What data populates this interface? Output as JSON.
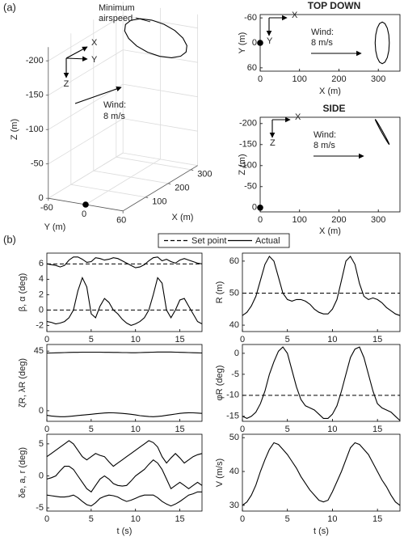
{
  "panels": [
    "(a)",
    "(b)"
  ],
  "legend": {
    "items": [
      {
        "name": "Set point",
        "dash": "5,3"
      },
      {
        "name": "Actual",
        "dash": "none"
      }
    ]
  },
  "chart_data": [
    {
      "type": "line3d",
      "annotation": [
        "Minimum",
        "airspeed"
      ],
      "wind": [
        "Wind:",
        "8 m/s"
      ],
      "triad": [
        "X",
        "Y",
        "Z"
      ],
      "xlabel": "X (m)",
      "ylabel": "Y (m)",
      "zlabel": "Z (m)",
      "x": [
        328,
        326.6,
        322.7,
        316.9,
        310,
        303.1,
        297.3,
        293.4,
        292,
        293.4,
        297.3,
        303.1,
        310,
        316.9,
        322.7,
        326.6,
        328
      ],
      "y": [
        0,
        19.1,
        35.4,
        46.2,
        50,
        46.2,
        35.4,
        19.1,
        0,
        -19.1,
        -35.4,
        -46.2,
        -50,
        -46.2,
        -35.4,
        -19.1,
        0
      ],
      "z": [
        -150,
        -151.2,
        -156.7,
        -165.7,
        -177,
        -188.7,
        -199.1,
        -206.6,
        -210,
        -208.8,
        -203.3,
        -194.3,
        -183,
        -171.3,
        -160.9,
        -153.4,
        -150
      ],
      "start": [
        0,
        0,
        0
      ],
      "color": "#000000",
      "xlim": [
        0,
        330
      ],
      "ylim": [
        -60,
        60
      ],
      "zlim": [
        -220,
        0
      ],
      "xticks": [
        100,
        200,
        300
      ],
      "yticks": [
        -60,
        0,
        60
      ],
      "zticks": [
        -200,
        -150,
        -100,
        -50,
        0
      ],
      "grid": true
    },
    {
      "type": "line",
      "title": "TOP DOWN",
      "xlabel": "X (m)",
      "ylabel": "Y (m)",
      "triad": [
        "X",
        "Y"
      ],
      "wind": [
        "Wind:",
        "8 m/s"
      ],
      "x": [
        328,
        326.6,
        322.7,
        316.9,
        310,
        303.1,
        297.3,
        293.4,
        292,
        293.4,
        297.3,
        303.1,
        310,
        316.9,
        322.7,
        326.6,
        328
      ],
      "series": [
        {
          "color": "#000000",
          "values": [
            0,
            19.1,
            35.4,
            46.2,
            50,
            46.2,
            35.4,
            19.1,
            0,
            -19.1,
            -35.4,
            -46.2,
            -50,
            -46.2,
            -35.4,
            -19.1,
            0
          ]
        }
      ],
      "start": [
        0,
        0
      ],
      "xlim": [
        0,
        355
      ],
      "xticks": [
        0,
        100,
        200,
        300
      ],
      "ylim": [
        -68,
        68
      ],
      "yticks": [
        -60,
        0,
        60
      ],
      "y_reversed": true
    },
    {
      "type": "line",
      "title": "SIDE",
      "xlabel": "X (m)",
      "ylabel": "Z (m)",
      "triad": [
        "X",
        "Z"
      ],
      "wind": [
        "Wind:",
        "8 m/s"
      ],
      "x": [
        328,
        326.6,
        322.7,
        316.9,
        310,
        303.1,
        297.3,
        293.4,
        292,
        293.4,
        297.3,
        303.1,
        310,
        316.9,
        322.7,
        326.6,
        328
      ],
      "series": [
        {
          "color": "#000000",
          "values": [
            -150,
            -151.2,
            -156.7,
            -165.7,
            -177,
            -188.7,
            -199.1,
            -206.6,
            -210,
            -208.8,
            -203.3,
            -194.3,
            -183,
            -171.3,
            -160.9,
            -153.4,
            -150
          ]
        }
      ],
      "start": [
        0,
        0
      ],
      "xlim": [
        0,
        355
      ],
      "xticks": [
        0,
        100,
        200,
        300
      ],
      "ylim": [
        -215,
        10
      ],
      "yticks": [
        -200,
        -150,
        -100,
        -50,
        0
      ],
      "y_reversed": true
    },
    {
      "type": "line",
      "ylabel": "β, α (deg)",
      "x": [
        0,
        0.5,
        1,
        1.5,
        2,
        2.5,
        3,
        3.5,
        4,
        4.5,
        5,
        5.5,
        6,
        6.5,
        7,
        7.5,
        8,
        8.5,
        9,
        9.5,
        10,
        10.5,
        11,
        11.5,
        12,
        12.5,
        13,
        13.5,
        14,
        14.5,
        15,
        15.5,
        16,
        16.5,
        17,
        17.5
      ],
      "setpoints": [
        6,
        0
      ],
      "series": [
        {
          "color": "#000000",
          "values": [
            6,
            5.9,
            5.8,
            5.6,
            5.8,
            6.5,
            6.9,
            6.9,
            6.6,
            6.2,
            6.3,
            6.8,
            6.7,
            6.5,
            6.6,
            6.8,
            6.7,
            6.4,
            6.1,
            5.8,
            5.5,
            5.6,
            5.9,
            6.4,
            6.8,
            6.9,
            6.4,
            6.6,
            6.3,
            6.1,
            6.5,
            6.7,
            6.5,
            6.3,
            6.1,
            6
          ]
        },
        {
          "color": "#000000",
          "values": [
            -1.5,
            -1.6,
            -1.8,
            -1.7,
            -1.5,
            -1,
            0,
            2.5,
            4.2,
            3,
            -0.5,
            -1,
            0.5,
            1.5,
            1,
            0,
            -0.5,
            -1.2,
            -1.7,
            -2,
            -1.8,
            -1.5,
            -1,
            0,
            2,
            4.2,
            3.5,
            0,
            -1,
            0,
            1.3,
            1.5,
            0.5,
            -0.5,
            -1.5,
            -1.8
          ]
        }
      ],
      "xlim": [
        0,
        17.5
      ],
      "xticks": [
        0,
        5,
        10,
        15
      ],
      "ylim": [
        -2.8,
        7.4
      ],
      "yticks": [
        -2,
        0,
        2,
        4,
        6
      ]
    },
    {
      "type": "line",
      "ylabel": "R (m)",
      "x": [
        0,
        0.5,
        1,
        1.5,
        2,
        2.5,
        3,
        3.5,
        4,
        4.5,
        5,
        5.5,
        6,
        6.5,
        7,
        7.5,
        8,
        8.5,
        9,
        9.5,
        10,
        10.5,
        11,
        11.5,
        12,
        12.5,
        13,
        13.5,
        14,
        14.5,
        15,
        15.5,
        16,
        16.5,
        17,
        17.5
      ],
      "setpoints": [
        50
      ],
      "series": [
        {
          "color": "#000000",
          "values": [
            43,
            44,
            46,
            49,
            54,
            59,
            61.5,
            60,
            55,
            50,
            48,
            47.5,
            48,
            48,
            47.5,
            46.5,
            45,
            44,
            43.5,
            43.5,
            45,
            48,
            54,
            60,
            61.5,
            59,
            53,
            49,
            48,
            48.5,
            48,
            47,
            45.5,
            44.5,
            43.5,
            43
          ]
        }
      ],
      "xlim": [
        0,
        17.5
      ],
      "xticks": [
        0,
        5,
        10,
        15
      ],
      "ylim": [
        38,
        62.5
      ],
      "yticks": [
        40,
        50,
        60
      ]
    },
    {
      "type": "line",
      "ylabel": "ζR, λR (deg)",
      "x": [
        0,
        0.5,
        1,
        1.5,
        2,
        2.5,
        3,
        3.5,
        4,
        4.5,
        5,
        5.5,
        6,
        6.5,
        7,
        7.5,
        8,
        8.5,
        9,
        9.5,
        10,
        10.5,
        11,
        11.5,
        12,
        12.5,
        13,
        13.5,
        14,
        14.5,
        15,
        15.5,
        16,
        16.5,
        17,
        17.5
      ],
      "setpoints": [],
      "series": [
        {
          "color": "#000000",
          "values": [
            43.5,
            43.6,
            43.7,
            43.8,
            43.9,
            44,
            44.1,
            44.1,
            44.2,
            44.2,
            44.2,
            44.2,
            44.2,
            44.1,
            44.1,
            44,
            44,
            43.9,
            43.9,
            43.8,
            43.8,
            43.9,
            44,
            44.1,
            44.2,
            44.3,
            44.3,
            44.3,
            44.3,
            44.2,
            44.1,
            44,
            43.9,
            43.8,
            43.7,
            43.6
          ]
        },
        {
          "color": "#000000",
          "values": [
            -3.5,
            -4,
            -4.3,
            -4.5,
            -4.5,
            -4.3,
            -4,
            -3.6,
            -3.3,
            -3,
            -2.7,
            -2.3,
            -2,
            -1.7,
            -1.5,
            -1.6,
            -1.8,
            -2,
            -2.3,
            -2.7,
            -3.2,
            -3.7,
            -4.1,
            -4.4,
            -4.5,
            -4.3,
            -4,
            -3.5,
            -3,
            -2.5,
            -2,
            -1.7,
            -1.5,
            -1.6,
            -1.8,
            -2
          ]
        }
      ],
      "xlim": [
        0,
        17.5
      ],
      "xticks": [
        0,
        5,
        10,
        15
      ],
      "ylim": [
        -8,
        50
      ],
      "yticks": [
        0,
        45
      ]
    },
    {
      "type": "line",
      "ylabel": "φR (deg)",
      "x": [
        0,
        0.5,
        1,
        1.5,
        2,
        2.5,
        3,
        3.5,
        4,
        4.5,
        5,
        5.5,
        6,
        6.5,
        7,
        7.5,
        8,
        8.5,
        9,
        9.5,
        10,
        10.5,
        11,
        11.5,
        12,
        12.5,
        13,
        13.5,
        14,
        14.5,
        15,
        15.5,
        16,
        16.5,
        17,
        17.5
      ],
      "setpoints": [
        -10
      ],
      "series": [
        {
          "color": "#000000",
          "values": [
            -15,
            -15.5,
            -15,
            -14,
            -12,
            -9,
            -5,
            -2,
            0.5,
            1.5,
            0,
            -4,
            -8,
            -11,
            -12.5,
            -13,
            -13.5,
            -14.5,
            -15.5,
            -15.5,
            -14.5,
            -12.5,
            -9,
            -5,
            -1,
            1,
            1.5,
            -1,
            -5,
            -9,
            -12,
            -13,
            -13.5,
            -14,
            -15,
            -16
          ]
        }
      ],
      "xlim": [
        0,
        17.5
      ],
      "xticks": [
        0,
        5,
        10,
        15
      ],
      "ylim": [
        -16.2,
        2.1
      ],
      "yticks": [
        -15,
        -10,
        -5,
        0
      ]
    },
    {
      "type": "line",
      "ylabel": "δe, a, r (deg)",
      "xlabel": "t (s)",
      "x": [
        0,
        0.5,
        1,
        1.5,
        2,
        2.5,
        3,
        3.5,
        4,
        4.5,
        5,
        5.5,
        6,
        6.5,
        7,
        7.5,
        8,
        8.5,
        9,
        9.5,
        10,
        10.5,
        11,
        11.5,
        12,
        12.5,
        13,
        13.5,
        14,
        14.5,
        15,
        15.5,
        16,
        16.5,
        17,
        17.5
      ],
      "setpoints": [],
      "series": [
        {
          "color": "#000000",
          "values": [
            3,
            3.5,
            4,
            4.5,
            5,
            5.5,
            5,
            4,
            3,
            2.5,
            3,
            3.5,
            3.2,
            3,
            2.2,
            1.5,
            2,
            2.5,
            3,
            3.5,
            4,
            4.5,
            5,
            5.5,
            5.2,
            4.5,
            3,
            2,
            2.8,
            3.5,
            2.8,
            2,
            2.5,
            3,
            3.3,
            3.5
          ]
        },
        {
          "color": "#000000",
          "values": [
            -0.5,
            -0.3,
            0,
            0.8,
            1.5,
            1.5,
            1,
            0,
            -1,
            -2,
            -2.5,
            -1.5,
            -0.5,
            0,
            -0.5,
            -1.2,
            -1.5,
            -1.6,
            -1.5,
            -0.8,
            0,
            0.5,
            1,
            1.8,
            2.5,
            2,
            1,
            -0.5,
            -2,
            -1.5,
            -1,
            -1.5,
            -2,
            -1.5,
            -1,
            -1.5
          ]
        },
        {
          "color": "#000000",
          "values": [
            -3,
            -3.1,
            -3.2,
            -3.3,
            -3.3,
            -3.2,
            -3,
            -3.4,
            -4,
            -4.5,
            -4.7,
            -4.2,
            -3.5,
            -3.2,
            -3,
            -3.1,
            -3.3,
            -3.7,
            -4,
            -3.8,
            -3.5,
            -3.2,
            -3,
            -3,
            -3,
            -3.4,
            -4,
            -4.4,
            -4.7,
            -4.4,
            -4,
            -3.5,
            -3,
            -2.8,
            -2.5,
            -2.5
          ]
        }
      ],
      "xlim": [
        0,
        17.5
      ],
      "xticks": [
        0,
        5,
        10,
        15
      ],
      "ylim": [
        -5.5,
        6.5
      ],
      "yticks": [
        -5,
        0,
        5
      ]
    },
    {
      "type": "line",
      "ylabel": "V (m/s)",
      "xlabel": "t (s)",
      "x": [
        0,
        0.5,
        1,
        1.5,
        2,
        2.5,
        3,
        3.5,
        4,
        4.5,
        5,
        5.5,
        6,
        6.5,
        7,
        7.5,
        8,
        8.5,
        9,
        9.5,
        10,
        10.5,
        11,
        11.5,
        12,
        12.5,
        13,
        13.5,
        14,
        14.5,
        15,
        15.5,
        16,
        16.5,
        17,
        17.5
      ],
      "setpoints": [],
      "series": [
        {
          "color": "#000000",
          "values": [
            30,
            31,
            33,
            36,
            40,
            43.5,
            46.5,
            48.5,
            48,
            46.5,
            45,
            43,
            41,
            38.5,
            36.5,
            34.5,
            33,
            31.5,
            31,
            31.5,
            34,
            37,
            40,
            43.5,
            47,
            48.5,
            48,
            46.5,
            45,
            42.5,
            40,
            37.5,
            35.5,
            33,
            31,
            30
          ]
        }
      ],
      "xlim": [
        0,
        17.5
      ],
      "xticks": [
        0,
        5,
        10,
        15
      ],
      "ylim": [
        28.3,
        51
      ],
      "yticks": [
        30,
        40,
        50
      ]
    }
  ]
}
